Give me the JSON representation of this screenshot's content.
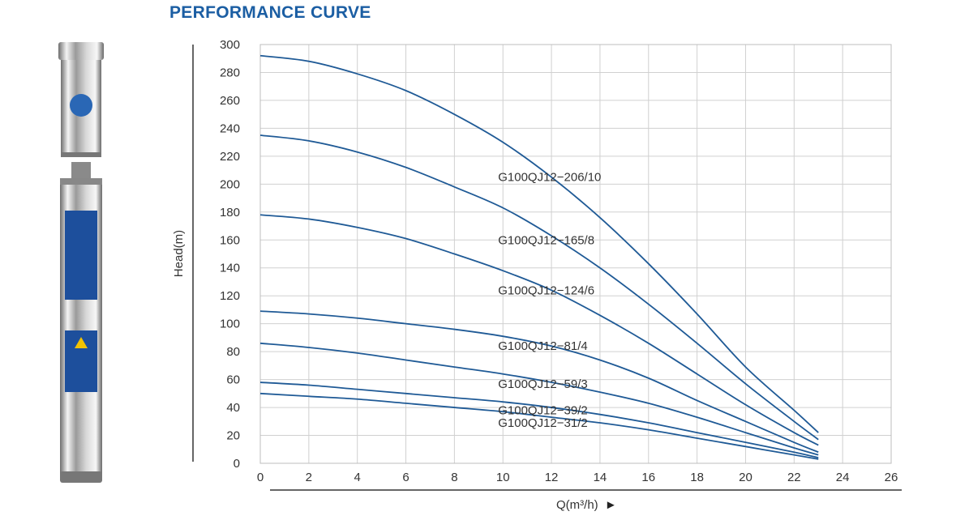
{
  "page": {
    "title": "PERFORMANCE CURVE"
  },
  "product_image": {
    "icon": "submersible-pump-image"
  },
  "chart_data": {
    "type": "line",
    "title": "PERFORMANCE CURVE",
    "xlabel": "Q(m³/h)",
    "xlabel_arrow": "►",
    "ylabel": "Head(m)",
    "xlim": [
      0,
      26
    ],
    "ylim": [
      0,
      300
    ],
    "xticks": [
      0,
      2,
      4,
      6,
      8,
      10,
      12,
      14,
      16,
      18,
      20,
      22,
      24,
      26
    ],
    "yticks": [
      0,
      20,
      40,
      60,
      80,
      100,
      120,
      140,
      160,
      180,
      200,
      220,
      240,
      260,
      280,
      300
    ],
    "grid": true,
    "line_color": "#1f5a96",
    "series": [
      {
        "name": "G100QJ12−206/10",
        "label_at": [
          10,
          205
        ],
        "x": [
          0,
          2,
          4,
          6,
          8,
          10,
          12,
          14,
          16,
          18,
          20,
          22,
          23
        ],
        "y": [
          292,
          288,
          279,
          267,
          250,
          230,
          205,
          176,
          143,
          107,
          69,
          38,
          22
        ]
      },
      {
        "name": "G100QJ12−165/8",
        "label_at": [
          10,
          160
        ],
        "x": [
          0,
          2,
          4,
          6,
          8,
          10,
          12,
          14,
          16,
          18,
          20,
          22,
          23
        ],
        "y": [
          235,
          231,
          223,
          212,
          198,
          183,
          163,
          140,
          114,
          86,
          57,
          30,
          17
        ]
      },
      {
        "name": "G100QJ12−124/6",
        "label_at": [
          10,
          124
        ],
        "x": [
          0,
          2,
          4,
          6,
          8,
          10,
          12,
          14,
          16,
          18,
          20,
          22,
          23
        ],
        "y": [
          178,
          175,
          169,
          161,
          150,
          138,
          124,
          106,
          86,
          64,
          42,
          22,
          13
        ]
      },
      {
        "name": "G100QJ12−81/4",
        "label_at": [
          10,
          84
        ],
        "x": [
          0,
          2,
          4,
          6,
          8,
          10,
          12,
          14,
          16,
          18,
          20,
          22,
          23
        ],
        "y": [
          109,
          107,
          104,
          100,
          96,
          91,
          84,
          74,
          61,
          45,
          30,
          15,
          8
        ]
      },
      {
        "name": "G100QJ12−59/3",
        "label_at": [
          10,
          57
        ],
        "x": [
          0,
          2,
          4,
          6,
          8,
          10,
          12,
          14,
          16,
          18,
          20,
          22,
          23
        ],
        "y": [
          86,
          83,
          79,
          74,
          69,
          64,
          58,
          51,
          43,
          33,
          22,
          11,
          6
        ]
      },
      {
        "name": "G100QJ12−39/2",
        "label_at": [
          10,
          38
        ],
        "x": [
          0,
          2,
          4,
          6,
          8,
          10,
          12,
          14,
          16,
          18,
          20,
          22,
          23
        ],
        "y": [
          58,
          56,
          53,
          50,
          47,
          44,
          40,
          35,
          29,
          22,
          15,
          8,
          4
        ]
      },
      {
        "name": "G100QJ12−31/2",
        "label_at": [
          10,
          29
        ],
        "x": [
          0,
          2,
          4,
          6,
          8,
          10,
          12,
          14,
          16,
          18,
          20,
          22,
          23
        ],
        "y": [
          50,
          48,
          46,
          43,
          40,
          37,
          33,
          29,
          24,
          18,
          12,
          6,
          3
        ]
      }
    ]
  }
}
